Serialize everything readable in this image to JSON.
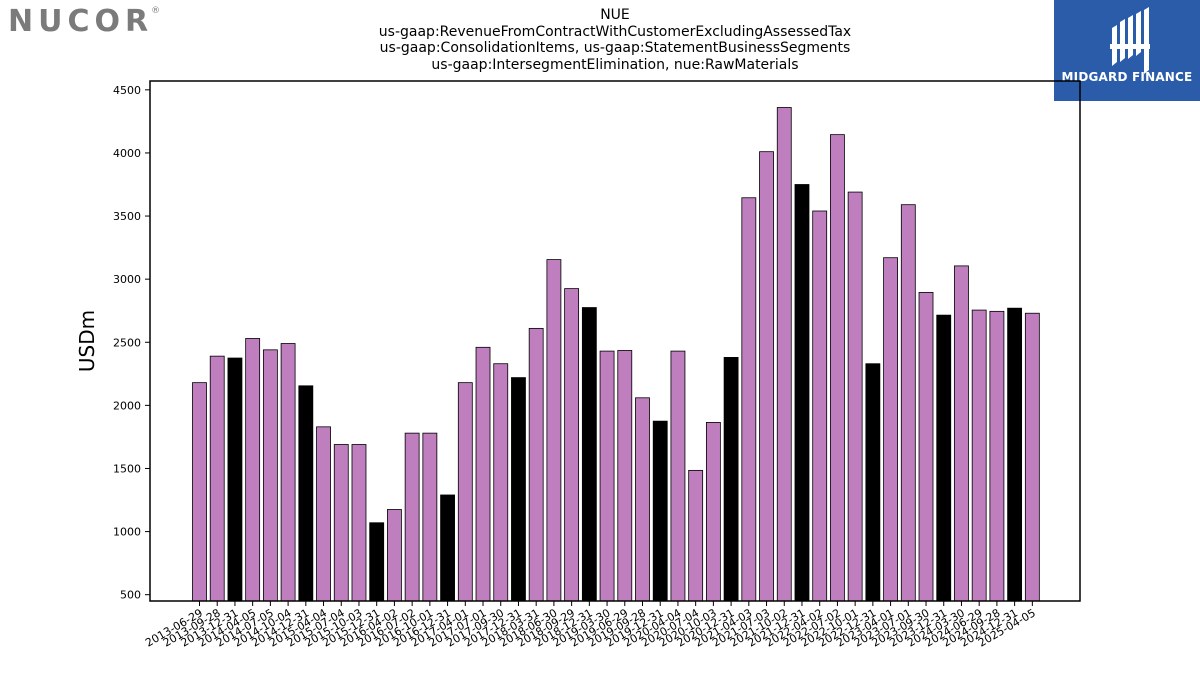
{
  "brand": {
    "name": "NUCOR",
    "reg_mark": "®"
  },
  "badge": {
    "text": "MIDGARD FINANCE",
    "color": "#2a5caa"
  },
  "chart_data": {
    "type": "bar",
    "title_lines": [
      "NUE",
      "us-gaap:RevenueFromContractWithCustomerExcludingAssessedTax",
      "us-gaap:ConsolidationItems, us-gaap:StatementBusinessSegments",
      "us-gaap:IntersegmentElimination, nue:RawMaterials"
    ],
    "xlabel": "",
    "ylabel": "USDm",
    "ylim": [
      450,
      4570
    ],
    "yticks": [
      500,
      1000,
      1500,
      2000,
      2500,
      3000,
      3500,
      4000,
      4500
    ],
    "grid": false,
    "colors": {
      "normal": "#bf7fbf",
      "highlight": "#000000",
      "edge": "#000000"
    },
    "categories": [
      "2013-06-29",
      "2013-09-28",
      "2013-12-31",
      "2014-04-05",
      "2014-07-05",
      "2014-10-04",
      "2014-12-31",
      "2015-04-04",
      "2015-07-04",
      "2015-10-03",
      "2015-12-31",
      "2016-04-02",
      "2016-07-02",
      "2016-10-01",
      "2016-12-31",
      "2017-04-01",
      "2017-07-01",
      "2017-09-30",
      "2017-12-31",
      "2018-03-31",
      "2018-06-30",
      "2018-09-29",
      "2018-12-31",
      "2019-03-30",
      "2019-06-29",
      "2019-09-28",
      "2019-12-31",
      "2020-04-04",
      "2020-07-04",
      "2020-10-03",
      "2020-12-31",
      "2021-04-03",
      "2021-07-03",
      "2021-10-02",
      "2021-12-31",
      "2022-04-02",
      "2022-07-02",
      "2022-10-01",
      "2022-12-31",
      "2023-04-01",
      "2023-07-01",
      "2023-09-30",
      "2023-12-31",
      "2024-03-30",
      "2024-06-29",
      "2024-09-28",
      "2024-12-31",
      "2025-04-05"
    ],
    "values": [
      2180,
      2390,
      2375,
      2530,
      2440,
      2490,
      2155,
      1830,
      1690,
      1690,
      1070,
      1175,
      1780,
      1780,
      1290,
      2180,
      2460,
      2330,
      2220,
      2610,
      3155,
      2925,
      2775,
      2430,
      2435,
      2060,
      1875,
      2430,
      1485,
      1865,
      2380,
      3645,
      4010,
      4360,
      3750,
      3540,
      4145,
      3690,
      2330,
      3170,
      3590,
      2895,
      2715,
      3105,
      2755,
      2745,
      2770,
      2730
    ],
    "highlight_categories": [
      "2013-12-31",
      "2014-12-31",
      "2015-12-31",
      "2016-12-31",
      "2017-12-31",
      "2018-12-31",
      "2019-12-31",
      "2020-12-31",
      "2021-12-31",
      "2022-12-31",
      "2023-12-31",
      "2024-12-31"
    ]
  }
}
